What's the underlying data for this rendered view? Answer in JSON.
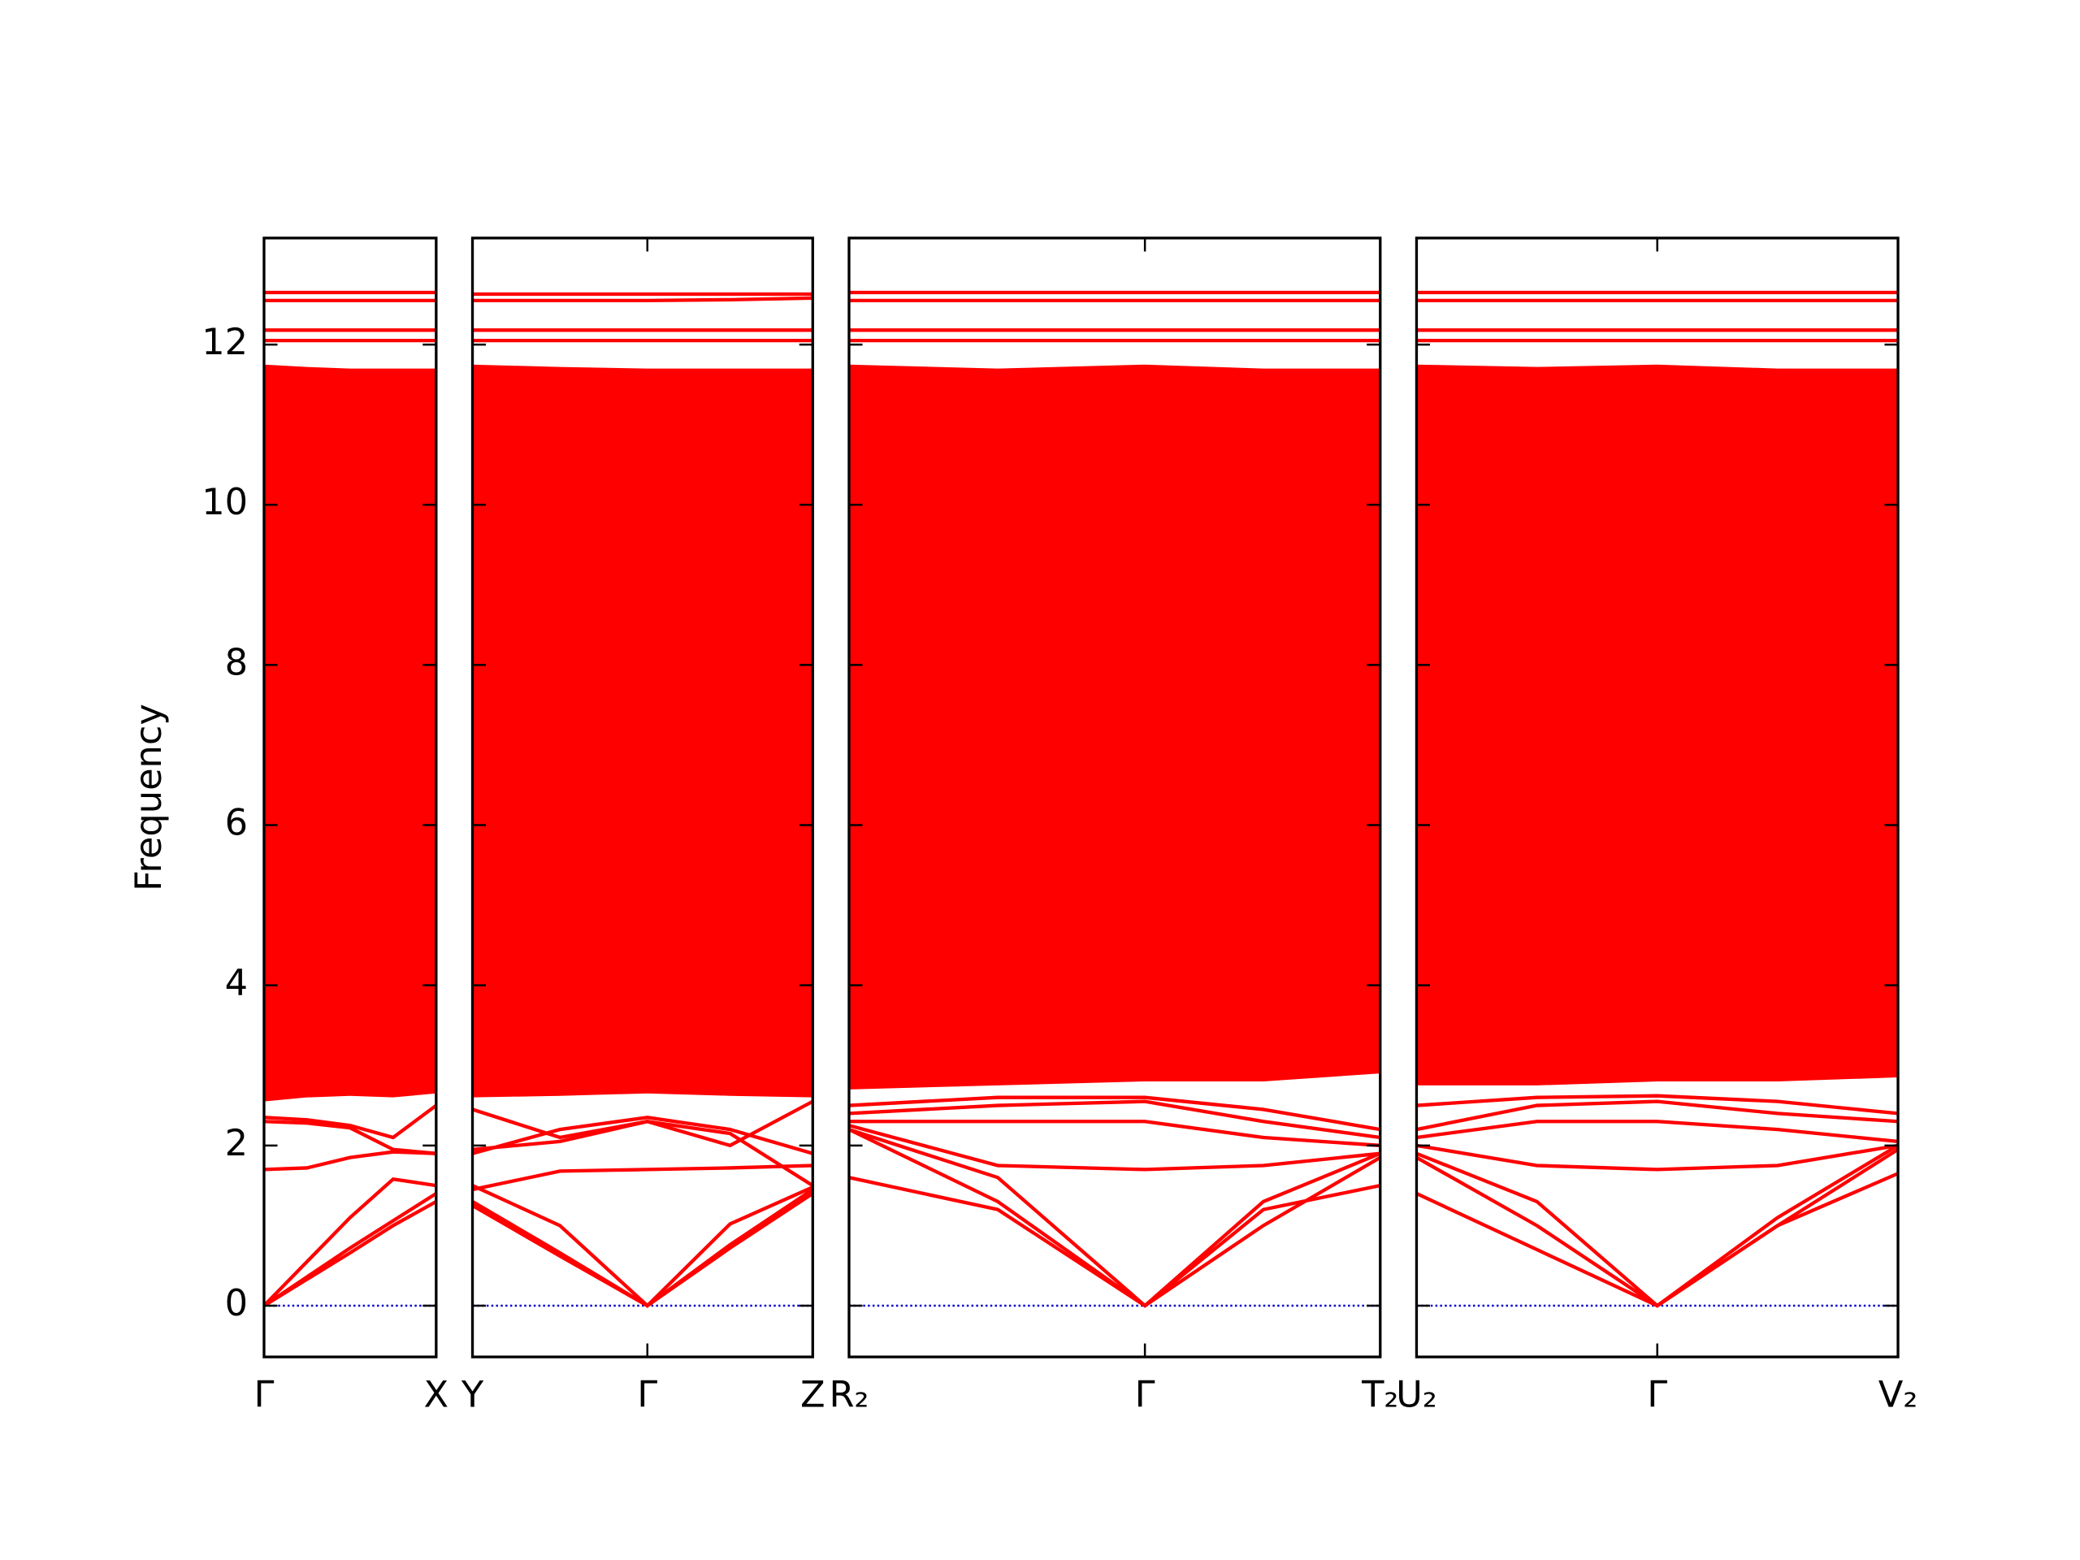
{
  "chart_data": [
    {
      "type": "line",
      "ylabel": "Frequency",
      "ylim": [
        -0.64,
        13.33
      ],
      "yticks": [
        0,
        2,
        4,
        6,
        8,
        10,
        12
      ],
      "xlim": [
        0,
        1
      ],
      "xticks": [
        {
          "value": 0,
          "label": "Γ"
        },
        {
          "value": 1,
          "label": "X"
        }
      ],
      "x": [
        0,
        0.25,
        0.5,
        0.75,
        1
      ],
      "zero_line": {
        "value": 0,
        "color": "#0000cc"
      },
      "envelope": {
        "color": "#ff0000",
        "lower": [
          2.55,
          2.6,
          2.62,
          2.6,
          2.65
        ],
        "upper": [
          11.75,
          11.72,
          11.7,
          11.7,
          11.7
        ]
      },
      "series": [
        {
          "color": "#ff0000",
          "values": [
            0,
            0.33,
            0.66,
            1.0,
            1.3
          ]
        },
        {
          "color": "#ff0000",
          "values": [
            0,
            0.36,
            0.72,
            1.06,
            1.4
          ]
        },
        {
          "color": "#ff0000",
          "values": [
            0,
            0.55,
            1.1,
            1.58,
            1.5
          ]
        },
        {
          "color": "#ff0000",
          "values": [
            1.7,
            1.72,
            1.85,
            1.92,
            1.9
          ]
        },
        {
          "color": "#ff0000",
          "values": [
            2.3,
            2.28,
            2.22,
            1.95,
            1.9
          ]
        },
        {
          "color": "#ff0000",
          "values": [
            2.35,
            2.32,
            2.25,
            2.1,
            2.5
          ]
        },
        {
          "color": "#ff0000",
          "values": [
            2.7,
            2.72,
            2.75,
            2.8,
            2.78
          ]
        },
        {
          "color": "#ff0000",
          "values": [
            12.05,
            12.05,
            12.05,
            12.05,
            12.05
          ]
        },
        {
          "color": "#ff0000",
          "values": [
            12.18,
            12.18,
            12.18,
            12.18,
            12.18
          ]
        },
        {
          "color": "#ff0000",
          "values": [
            12.55,
            12.55,
            12.55,
            12.55,
            12.55
          ]
        },
        {
          "color": "#ff0000",
          "values": [
            12.65,
            12.65,
            12.65,
            12.65,
            12.65
          ]
        }
      ]
    },
    {
      "type": "line",
      "ylim": [
        -0.64,
        13.33
      ],
      "yticks": [
        0,
        2,
        4,
        6,
        8,
        10,
        12
      ],
      "xlim": [
        0,
        1
      ],
      "xticks": [
        {
          "value": 0,
          "label": "Y"
        },
        {
          "value": 0.514,
          "label": "Γ"
        },
        {
          "value": 1,
          "label": "Z"
        }
      ],
      "x": [
        0,
        0.257,
        0.514,
        0.757,
        1
      ],
      "zero_line": {
        "value": 0,
        "color": "#0000cc"
      },
      "envelope": {
        "color": "#ff0000",
        "lower": [
          2.6,
          2.62,
          2.65,
          2.62,
          2.6
        ],
        "upper": [
          11.75,
          11.72,
          11.7,
          11.7,
          11.7
        ]
      },
      "series": [
        {
          "color": "#ff0000",
          "values": [
            1.25,
            0.62,
            0,
            0.72,
            1.4
          ]
        },
        {
          "color": "#ff0000",
          "values": [
            1.3,
            0.66,
            0,
            0.76,
            1.45
          ]
        },
        {
          "color": "#ff0000",
          "values": [
            1.5,
            1.0,
            0,
            1.02,
            1.48
          ]
        },
        {
          "color": "#ff0000",
          "values": [
            1.45,
            1.68,
            1.7,
            1.72,
            1.75
          ]
        },
        {
          "color": "#ff0000",
          "values": [
            1.95,
            2.05,
            2.3,
            2.15,
            1.5
          ]
        },
        {
          "color": "#ff0000",
          "values": [
            1.9,
            2.2,
            2.35,
            2.2,
            1.9
          ]
        },
        {
          "color": "#ff0000",
          "values": [
            2.45,
            2.1,
            2.3,
            2.0,
            2.55
          ]
        },
        {
          "color": "#ff0000",
          "values": [
            12.05,
            12.05,
            12.05,
            12.05,
            12.05
          ]
        },
        {
          "color": "#ff0000",
          "values": [
            12.18,
            12.18,
            12.18,
            12.18,
            12.18
          ]
        },
        {
          "color": "#ff0000",
          "values": [
            12.55,
            12.55,
            12.55,
            12.56,
            12.58
          ]
        },
        {
          "color": "#ff0000",
          "values": [
            12.63,
            12.63,
            12.63,
            12.63,
            12.63
          ]
        }
      ]
    },
    {
      "type": "line",
      "ylim": [
        -0.64,
        13.33
      ],
      "yticks": [
        0,
        2,
        4,
        6,
        8,
        10,
        12
      ],
      "xlim": [
        0,
        1
      ],
      "xticks": [
        {
          "value": 0,
          "label": "R₂"
        },
        {
          "value": 0.557,
          "label": "Γ"
        },
        {
          "value": 1,
          "label": "T₂"
        }
      ],
      "x": [
        0,
        0.28,
        0.557,
        0.78,
        1
      ],
      "zero_line": {
        "value": 0,
        "color": "#0000cc"
      },
      "envelope": {
        "color": "#ff0000",
        "lower": [
          2.7,
          2.75,
          2.8,
          2.8,
          2.9
        ],
        "upper": [
          11.75,
          11.7,
          11.75,
          11.7,
          11.7
        ]
      },
      "series": [
        {
          "color": "#ff0000",
          "values": [
            1.6,
            1.2,
            0,
            1.2,
            1.5
          ]
        },
        {
          "color": "#ff0000",
          "values": [
            2.2,
            1.3,
            0,
            1.0,
            1.85
          ]
        },
        {
          "color": "#ff0000",
          "values": [
            2.2,
            1.6,
            0,
            1.3,
            1.9
          ]
        },
        {
          "color": "#ff0000",
          "values": [
            2.25,
            1.75,
            1.7,
            1.75,
            1.9
          ]
        },
        {
          "color": "#ff0000",
          "values": [
            2.3,
            2.3,
            2.3,
            2.1,
            2.0
          ]
        },
        {
          "color": "#ff0000",
          "values": [
            2.4,
            2.5,
            2.55,
            2.3,
            2.1
          ]
        },
        {
          "color": "#ff0000",
          "values": [
            2.5,
            2.6,
            2.6,
            2.45,
            2.2
          ]
        },
        {
          "color": "#ff0000",
          "values": [
            12.05,
            12.05,
            12.05,
            12.05,
            12.05
          ]
        },
        {
          "color": "#ff0000",
          "values": [
            12.18,
            12.18,
            12.18,
            12.18,
            12.18
          ]
        },
        {
          "color": "#ff0000",
          "values": [
            12.55,
            12.55,
            12.55,
            12.55,
            12.55
          ]
        },
        {
          "color": "#ff0000",
          "values": [
            12.65,
            12.65,
            12.65,
            12.65,
            12.65
          ]
        }
      ]
    },
    {
      "type": "line",
      "ylim": [
        -0.64,
        13.33
      ],
      "yticks": [
        0,
        2,
        4,
        6,
        8,
        10,
        12
      ],
      "xlim": [
        0,
        1
      ],
      "xticks": [
        {
          "value": 0,
          "label": "U₂"
        },
        {
          "value": 0.5,
          "label": "Γ"
        },
        {
          "value": 1,
          "label": "V₂"
        }
      ],
      "x": [
        0,
        0.25,
        0.5,
        0.75,
        1
      ],
      "zero_line": {
        "value": 0,
        "color": "#0000cc"
      },
      "envelope": {
        "color": "#ff0000",
        "lower": [
          2.75,
          2.75,
          2.8,
          2.8,
          2.85
        ],
        "upper": [
          11.75,
          11.72,
          11.75,
          11.7,
          11.7
        ]
      },
      "series": [
        {
          "color": "#ff0000",
          "values": [
            1.4,
            0.7,
            0,
            1.0,
            1.65
          ]
        },
        {
          "color": "#ff0000",
          "values": [
            1.85,
            1.0,
            0,
            1.0,
            1.95
          ]
        },
        {
          "color": "#ff0000",
          "values": [
            1.9,
            1.3,
            0,
            1.1,
            2.0
          ]
        },
        {
          "color": "#ff0000",
          "values": [
            2.0,
            1.75,
            1.7,
            1.75,
            2.0
          ]
        },
        {
          "color": "#ff0000",
          "values": [
            2.1,
            2.3,
            2.3,
            2.2,
            2.05
          ]
        },
        {
          "color": "#ff0000",
          "values": [
            2.2,
            2.5,
            2.55,
            2.4,
            2.3
          ]
        },
        {
          "color": "#ff0000",
          "values": [
            2.5,
            2.6,
            2.62,
            2.55,
            2.4
          ]
        },
        {
          "color": "#ff0000",
          "values": [
            12.05,
            12.05,
            12.05,
            12.05,
            12.05
          ]
        },
        {
          "color": "#ff0000",
          "values": [
            12.18,
            12.18,
            12.18,
            12.18,
            12.18
          ]
        },
        {
          "color": "#ff0000",
          "values": [
            12.55,
            12.55,
            12.55,
            12.55,
            12.55
          ]
        },
        {
          "color": "#ff0000",
          "values": [
            12.65,
            12.65,
            12.65,
            12.65,
            12.65
          ]
        }
      ]
    }
  ]
}
